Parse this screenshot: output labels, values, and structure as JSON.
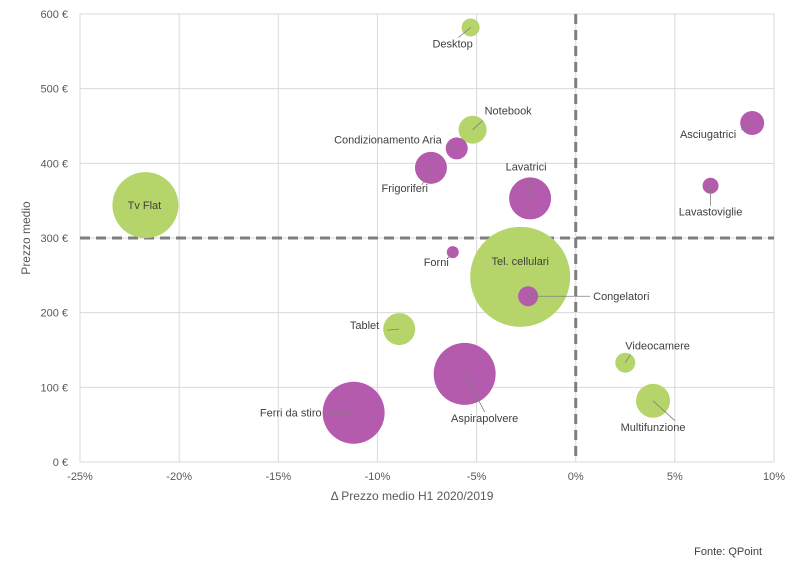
{
  "chart_data": {
    "type": "scatter",
    "subtype": "bubble",
    "title": "",
    "xlabel": "Δ Prezzo medio H1 2020/2019",
    "ylabel": "Prezzo medio",
    "xlim": [
      -0.25,
      0.1
    ],
    "ylim": [
      0,
      600
    ],
    "x_ticks": [
      "-25%",
      "-20%",
      "-15%",
      "-10%",
      "-5%",
      "0%",
      "5%",
      "10%"
    ],
    "y_ticks": [
      "0 €",
      "100 €",
      "200 €",
      "300 €",
      "400 €",
      "500 €",
      "600 €"
    ],
    "grid": true,
    "reference_lines": {
      "x": 0,
      "y": 300,
      "style": "dashed"
    },
    "colors": {
      "green": "#b5d56a",
      "purple": "#b45bae"
    },
    "points": [
      {
        "label": "Desktop",
        "x": -0.053,
        "y": 582,
        "size": 9,
        "color": "green"
      },
      {
        "label": "Notebook",
        "x": -0.052,
        "y": 445,
        "size": 14,
        "color": "green"
      },
      {
        "label": "Condizionamento Aria",
        "x": -0.06,
        "y": 420,
        "size": 11,
        "color": "purple"
      },
      {
        "label": "Frigoriferi",
        "x": -0.073,
        "y": 394,
        "size": 16,
        "color": "purple"
      },
      {
        "label": "Lavatrici",
        "x": -0.023,
        "y": 353,
        "size": 21,
        "color": "purple"
      },
      {
        "label": "Asciugatrici",
        "x": 0.089,
        "y": 454,
        "size": 12,
        "color": "purple"
      },
      {
        "label": "Lavastoviglie",
        "x": 0.068,
        "y": 370,
        "size": 8,
        "color": "purple"
      },
      {
        "label": "Tv Flat",
        "x": -0.217,
        "y": 344,
        "size": 33,
        "color": "green"
      },
      {
        "label": "Forni",
        "x": -0.062,
        "y": 281,
        "size": 6,
        "color": "purple"
      },
      {
        "label": "Tel. cellulari",
        "x": -0.028,
        "y": 248,
        "size": 50,
        "color": "green"
      },
      {
        "label": "Congelatori",
        "x": -0.024,
        "y": 222,
        "size": 10,
        "color": "purple"
      },
      {
        "label": "Tablet",
        "x": -0.089,
        "y": 178,
        "size": 16,
        "color": "green"
      },
      {
        "label": "Videocamere",
        "x": 0.025,
        "y": 133,
        "size": 10,
        "color": "green"
      },
      {
        "label": "Aspirapolvere",
        "x": -0.056,
        "y": 118,
        "size": 31,
        "color": "purple"
      },
      {
        "label": "Multifunzione",
        "x": 0.039,
        "y": 82,
        "size": 17,
        "color": "green"
      },
      {
        "label": "Ferri da stiro",
        "x": -0.112,
        "y": 66,
        "size": 31,
        "color": "purple"
      }
    ]
  },
  "footer": {
    "source": "Fonte: QPoint"
  }
}
